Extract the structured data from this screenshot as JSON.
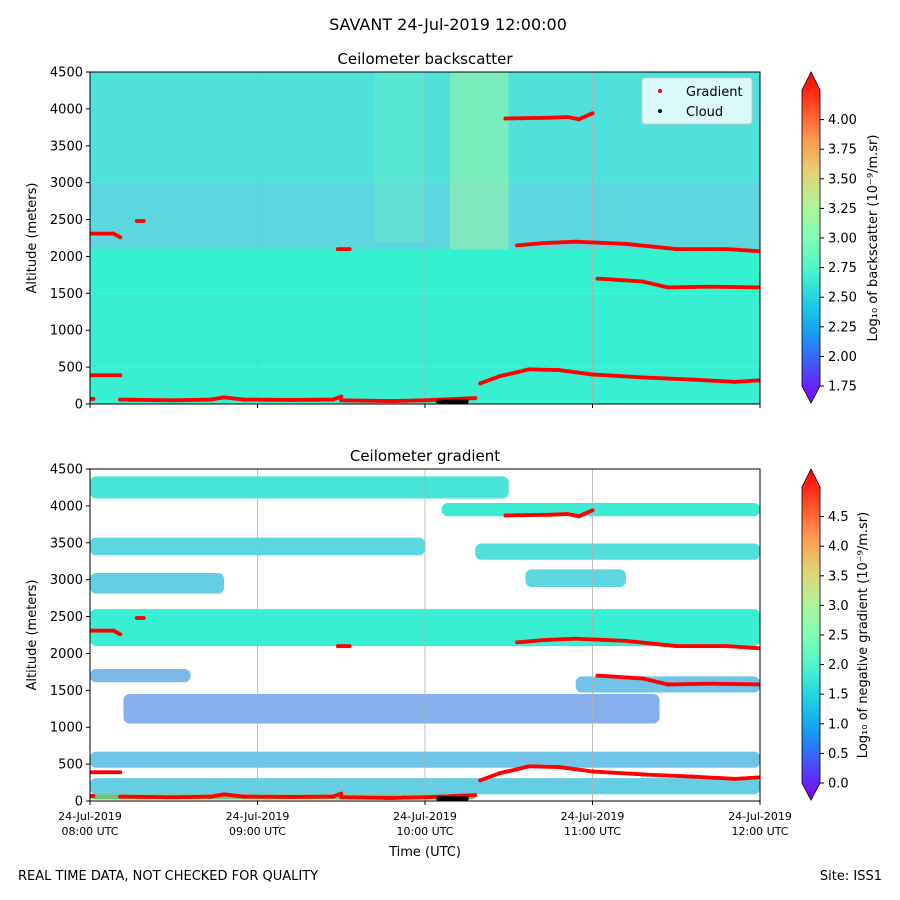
{
  "figure": {
    "suptitle": "SAVANT 24-Jul-2019 12:00:00",
    "footer_left": "REAL TIME DATA, NOT CHECKED FOR QUALITY",
    "footer_right": "Site: ISS1"
  },
  "chart_data": [
    {
      "type": "heatmap",
      "title": "Ceilometer backscatter",
      "ylabel": "Altitude (meters)",
      "xlabel": "",
      "ylim": [
        0,
        4500
      ],
      "yticks": [
        "0",
        "500",
        "1000",
        "1500",
        "2000",
        "2500",
        "3000",
        "3500",
        "4000",
        "4500"
      ],
      "xlim_hours": [
        8,
        12
      ],
      "grid": "vertical only",
      "colorbar": {
        "label": "Log₁₀ of backscatter (10⁻⁹/m.sr)",
        "range": [
          1.75,
          4.25
        ],
        "ticks": [
          "1.75",
          "2.00",
          "2.25",
          "2.50",
          "2.75",
          "3.00",
          "3.25",
          "3.50",
          "3.75",
          "4.00"
        ],
        "colormap": "rainbow",
        "extend": "both"
      },
      "legend": {
        "position": "top-right",
        "entries": [
          {
            "label": "Gradient",
            "color": "#ff0000",
            "marker": "dot"
          },
          {
            "label": "Cloud",
            "color": "#000000",
            "marker": "dot"
          }
        ]
      },
      "layers": [
        {
          "alt_range": [
            0,
            500
          ],
          "value": 2.72
        },
        {
          "alt_range": [
            500,
            1500
          ],
          "value": 2.72
        },
        {
          "alt_range": [
            1500,
            2100
          ],
          "value": 2.75
        },
        {
          "alt_range": [
            2100,
            3000
          ],
          "value": 2.55
        },
        {
          "alt_range": [
            3000,
            4500
          ],
          "value": 2.62
        }
      ]
    },
    {
      "type": "heatmap",
      "title": "Ceilometer gradient",
      "ylabel": "Altitude (meters)",
      "xlabel": "Time (UTC)",
      "ylim": [
        0,
        4500
      ],
      "yticks": [
        "0",
        "500",
        "1000",
        "1500",
        "2000",
        "2500",
        "3000",
        "3500",
        "4000",
        "4500"
      ],
      "xticks": [
        {
          "hour": 8,
          "date": "24-Jul-2019",
          "time": "08:00 UTC"
        },
        {
          "hour": 9,
          "date": "24-Jul-2019",
          "time": "09:00 UTC"
        },
        {
          "hour": 10,
          "date": "24-Jul-2019",
          "time": "10:00 UTC"
        },
        {
          "hour": 11,
          "date": "24-Jul-2019",
          "time": "11:00 UTC"
        },
        {
          "hour": 12,
          "date": "24-Jul-2019",
          "time": "12:00 UTC"
        }
      ],
      "xlim_hours": [
        8,
        12
      ],
      "grid": "vertical only",
      "colorbar": {
        "label": "Log₁₀ of negative gradient (10⁻⁹/m.sr)",
        "range": [
          0.0,
          5.0
        ],
        "ticks": [
          "0.0",
          "0.5",
          "1.0",
          "1.5",
          "2.0",
          "2.5",
          "3.0",
          "3.5",
          "4.0",
          "4.5"
        ],
        "colormap": "rainbow",
        "extend": "both"
      },
      "bands": [
        {
          "alt": 4250,
          "half_width": 150,
          "t0": 8.0,
          "t1": 10.5,
          "value": 1.8
        },
        {
          "alt": 3950,
          "half_width": 90,
          "t0": 10.1,
          "t1": 12.0,
          "value": 1.9
        },
        {
          "alt": 3450,
          "half_width": 120,
          "t0": 8.0,
          "t1": 10.0,
          "value": 1.6
        },
        {
          "alt": 3380,
          "half_width": 110,
          "t0": 10.3,
          "t1": 12.0,
          "value": 1.7
        },
        {
          "alt": 2950,
          "half_width": 140,
          "t0": 8.0,
          "t1": 8.8,
          "value": 1.5
        },
        {
          "alt": 3020,
          "half_width": 120,
          "t0": 10.6,
          "t1": 11.2,
          "value": 1.6
        },
        {
          "alt": 2350,
          "half_width": 250,
          "t0": 8.0,
          "t1": 12.0,
          "value": 1.95
        },
        {
          "alt": 1700,
          "half_width": 90,
          "t0": 8.0,
          "t1": 8.6,
          "value": 1.3
        },
        {
          "alt": 1580,
          "half_width": 110,
          "t0": 10.9,
          "t1": 12.0,
          "value": 1.4
        },
        {
          "alt": 1250,
          "half_width": 200,
          "t0": 8.2,
          "t1": 11.4,
          "value": 1.2
        },
        {
          "alt": 560,
          "half_width": 110,
          "t0": 8.0,
          "t1": 12.0,
          "value": 1.4
        },
        {
          "alt": 200,
          "half_width": 110,
          "t0": 8.0,
          "t1": 12.0,
          "value": 1.5
        },
        {
          "alt": 55,
          "half_width": 35,
          "t0": 8.0,
          "t1": 10.3,
          "value": 3.6
        }
      ]
    }
  ],
  "gradient_series": [
    {
      "points": [
        [
          8.0,
          70
        ],
        [
          8.02,
          70
        ]
      ]
    },
    {
      "points": [
        [
          8.0,
          390
        ],
        [
          8.18,
          390
        ]
      ]
    },
    {
      "points": [
        [
          8.0,
          2310
        ],
        [
          8.14,
          2310
        ],
        [
          8.18,
          2260
        ]
      ]
    },
    {
      "points": [
        [
          8.28,
          2480
        ],
        [
          8.32,
          2480
        ]
      ]
    },
    {
      "points": [
        [
          8.18,
          60
        ],
        [
          8.5,
          50
        ],
        [
          8.72,
          60
        ],
        [
          8.8,
          90
        ],
        [
          8.92,
          60
        ],
        [
          9.2,
          55
        ],
        [
          9.45,
          60
        ],
        [
          9.5,
          100
        ]
      ]
    },
    {
      "points": [
        [
          9.48,
          2100
        ],
        [
          9.55,
          2100
        ]
      ]
    },
    {
      "points": [
        [
          9.5,
          50
        ],
        [
          9.8,
          40
        ],
        [
          10.0,
          50
        ],
        [
          10.3,
          80
        ]
      ]
    },
    {
      "points": [
        [
          10.33,
          280
        ],
        [
          10.45,
          380
        ],
        [
          10.55,
          430
        ],
        [
          10.62,
          470
        ],
        [
          10.8,
          460
        ],
        [
          11.0,
          400
        ],
        [
          11.3,
          360
        ],
        [
          11.6,
          330
        ],
        [
          11.85,
          300
        ],
        [
          12.0,
          320
        ]
      ]
    },
    {
      "points": [
        [
          10.48,
          3870
        ],
        [
          10.75,
          3880
        ],
        [
          10.85,
          3890
        ],
        [
          10.92,
          3860
        ],
        [
          11.0,
          3940
        ]
      ]
    },
    {
      "points": [
        [
          10.55,
          2150
        ],
        [
          10.7,
          2180
        ],
        [
          10.9,
          2200
        ],
        [
          11.2,
          2170
        ],
        [
          11.5,
          2100
        ],
        [
          11.8,
          2100
        ],
        [
          12.0,
          2070
        ]
      ]
    },
    {
      "points": [
        [
          11.03,
          1700
        ],
        [
          11.3,
          1660
        ],
        [
          11.45,
          1580
        ],
        [
          11.7,
          1590
        ],
        [
          12.0,
          1580
        ]
      ]
    }
  ],
  "cloud_series": {
    "points": [
      [
        10.08,
        20
      ],
      [
        10.25,
        20
      ]
    ]
  }
}
